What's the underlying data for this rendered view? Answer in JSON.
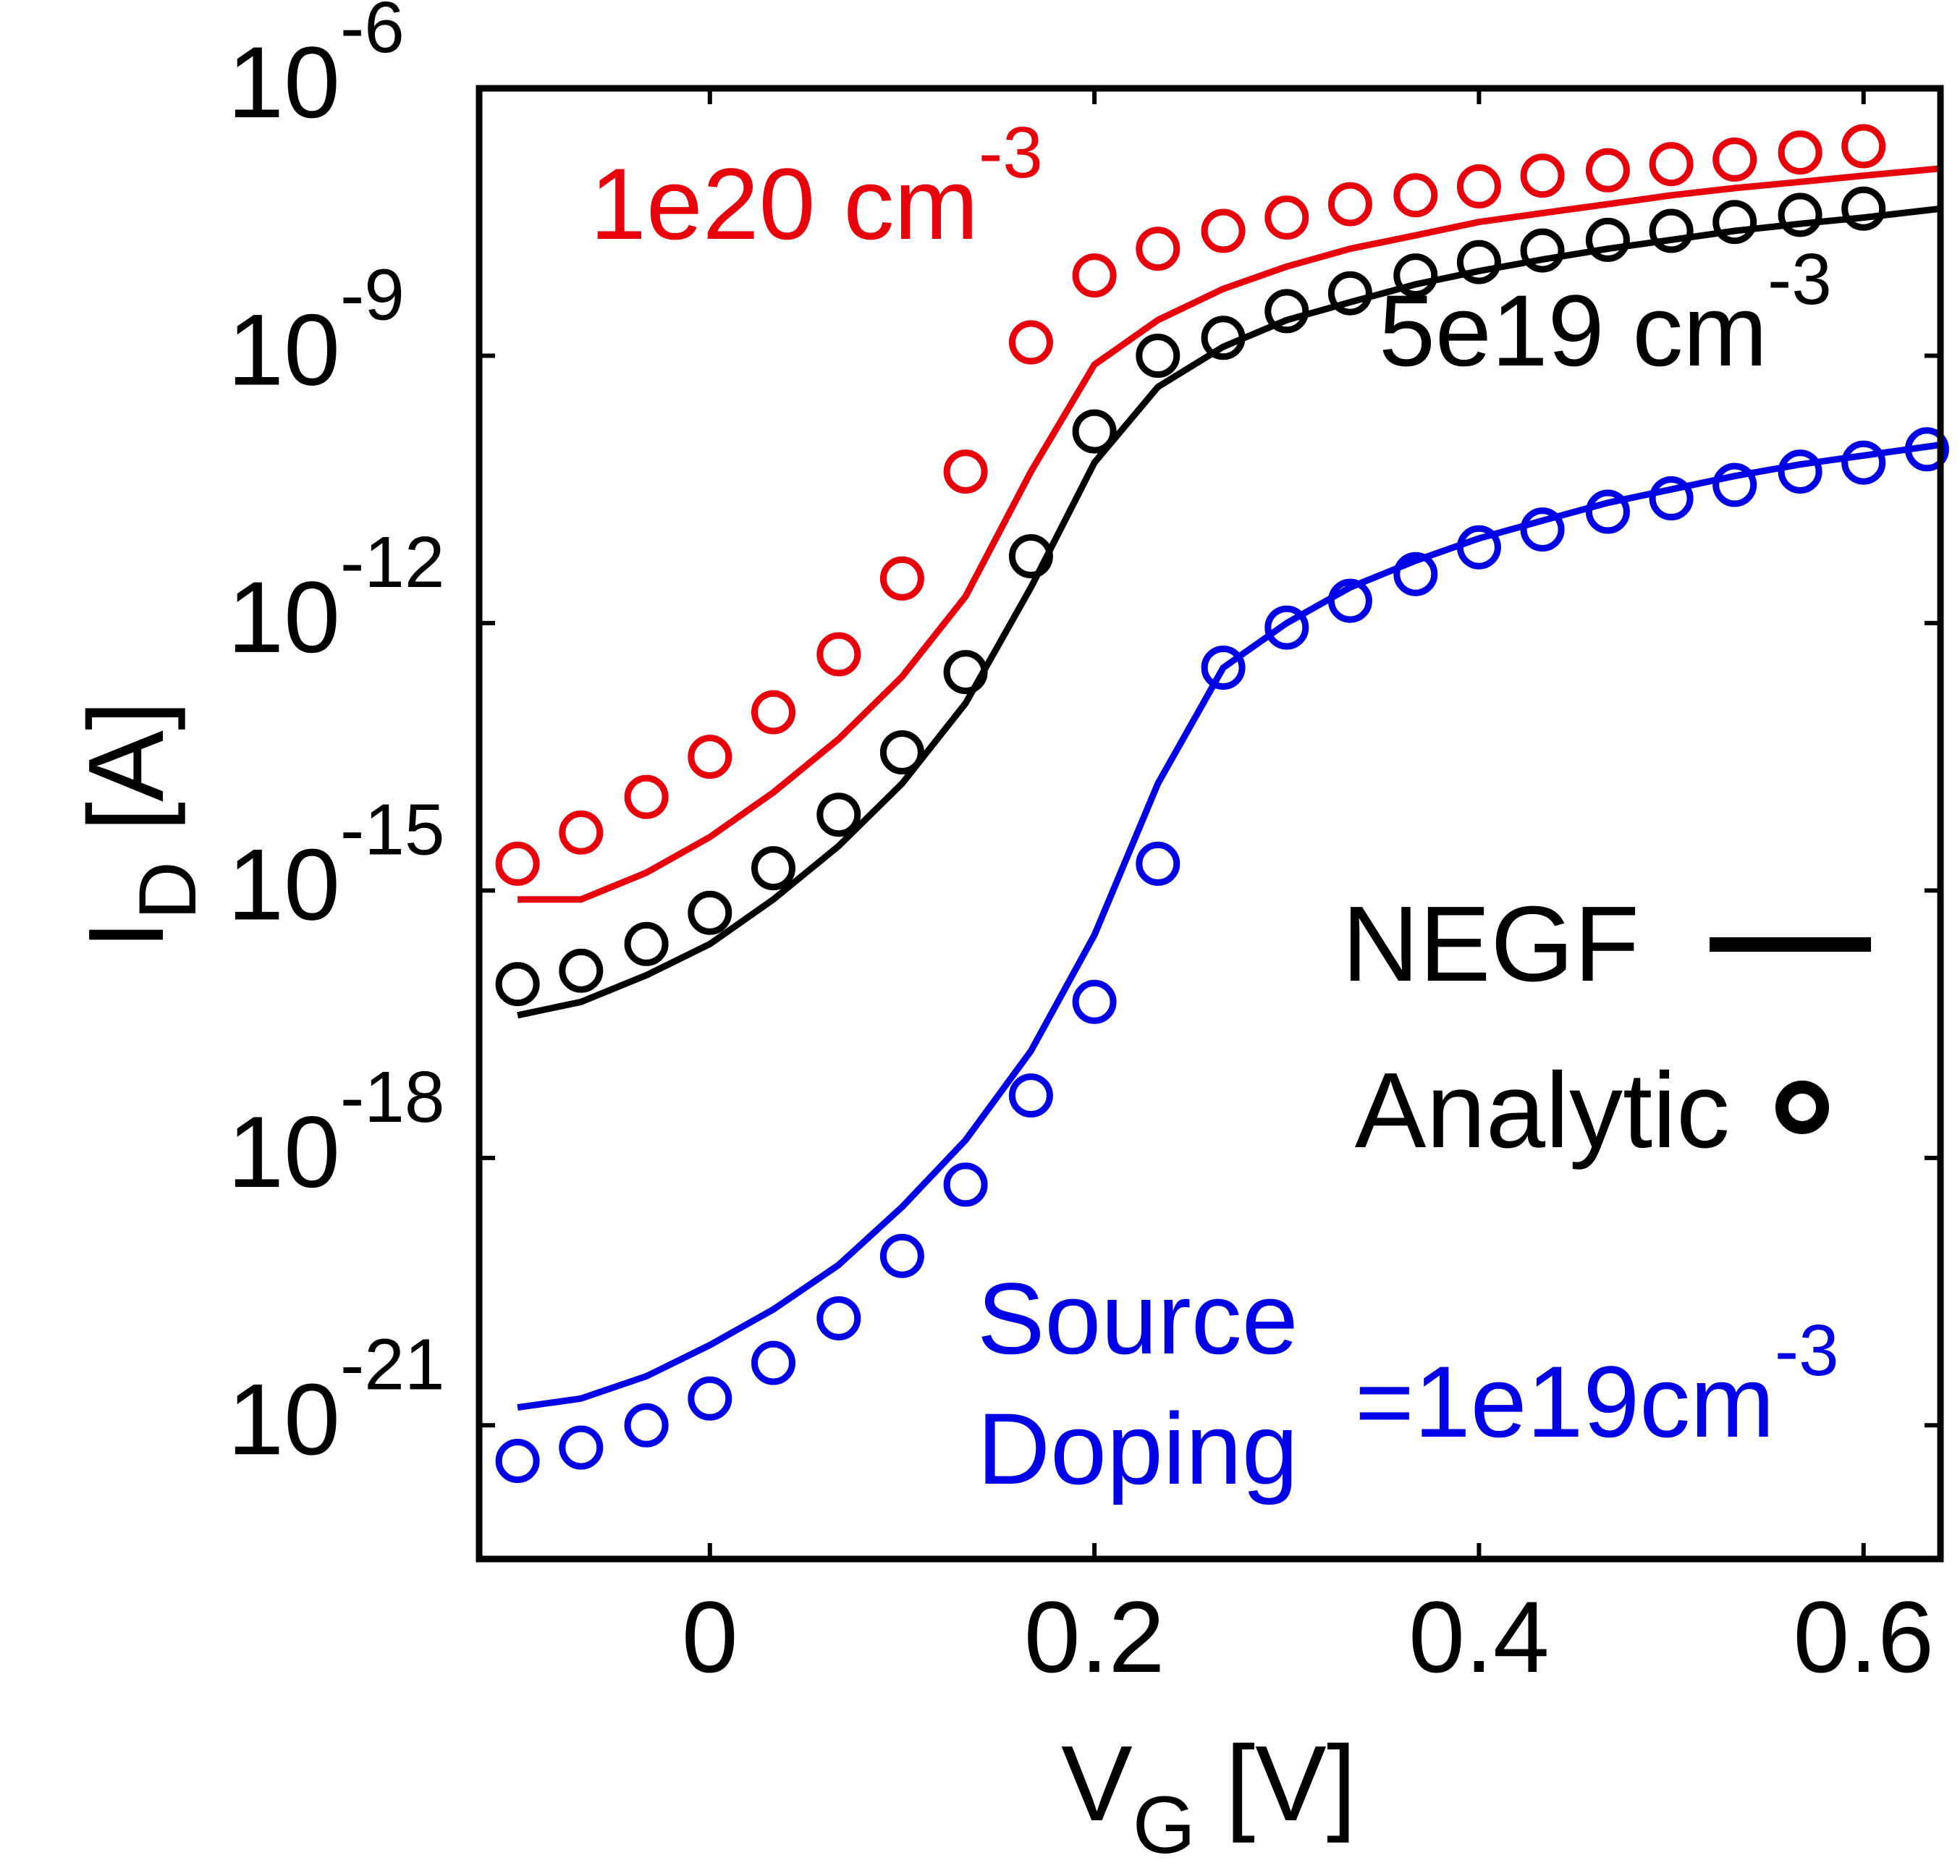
{
  "chart_data": {
    "type": "line",
    "title": "",
    "xlabel": {
      "main": "V",
      "sub": "G",
      "unit": " [V]"
    },
    "ylabel": {
      "main": "I",
      "sub": "D",
      "unit": " [A]"
    },
    "xlim": [
      -0.12,
      0.64
    ],
    "ylog_exponent_range": [
      -22.5,
      -6
    ],
    "x_ticks": [
      {
        "value": 0,
        "label": "0"
      },
      {
        "value": 0.2,
        "label": "0.2"
      },
      {
        "value": 0.4,
        "label": "0.4"
      },
      {
        "value": 0.6,
        "label": "0.6"
      }
    ],
    "y_ticks": [
      {
        "exp": -6,
        "base": "10",
        "sup": "-6"
      },
      {
        "exp": -9,
        "base": "10",
        "sup": "-9"
      },
      {
        "exp": -12,
        "base": "10",
        "sup": "-12"
      },
      {
        "exp": -15,
        "base": "10",
        "sup": "-15"
      },
      {
        "exp": -18,
        "base": "10",
        "sup": "-18"
      },
      {
        "exp": -21,
        "base": "10",
        "sup": "-21"
      }
    ],
    "series": [
      {
        "name": "1e20 cm-3",
        "color": "#e8000b",
        "negf_x": [
          -0.1,
          -0.067,
          -0.033,
          0,
          0.033,
          0.067,
          0.1,
          0.133,
          0.167,
          0.2,
          0.233,
          0.267,
          0.3,
          0.333,
          0.367,
          0.4,
          0.433,
          0.467,
          0.5,
          0.533,
          0.567,
          0.6,
          0.64
        ],
        "negf_log10": [
          -15.1,
          -15.1,
          -14.8,
          -14.4,
          -13.9,
          -13.3,
          -12.6,
          -11.7,
          -10.3,
          -9.1,
          -8.6,
          -8.25,
          -8.0,
          -7.8,
          -7.65,
          -7.5,
          -7.4,
          -7.3,
          -7.2,
          -7.12,
          -7.05,
          -6.98,
          -6.9
        ],
        "analytic_x": [
          -0.1,
          -0.067,
          -0.033,
          0,
          0.033,
          0.067,
          0.1,
          0.133,
          0.167,
          0.2,
          0.233,
          0.267,
          0.3,
          0.333,
          0.367,
          0.4,
          0.433,
          0.467,
          0.5,
          0.533,
          0.567,
          0.6
        ],
        "analytic_log10": [
          -14.7,
          -14.35,
          -13.95,
          -13.5,
          -13.0,
          -12.35,
          -11.5,
          -10.3,
          -8.85,
          -8.1,
          -7.8,
          -7.6,
          -7.45,
          -7.3,
          -7.2,
          -7.1,
          -6.98,
          -6.92,
          -6.85,
          -6.8,
          -6.72,
          -6.65
        ]
      },
      {
        "name": "5e19 cm-3",
        "color": "#000000",
        "negf_x": [
          -0.1,
          -0.067,
          -0.033,
          0,
          0.033,
          0.067,
          0.1,
          0.133,
          0.167,
          0.2,
          0.233,
          0.267,
          0.3,
          0.333,
          0.367,
          0.4,
          0.433,
          0.467,
          0.5,
          0.533,
          0.567,
          0.6,
          0.64
        ],
        "negf_log10": [
          -16.4,
          -16.25,
          -15.95,
          -15.6,
          -15.1,
          -14.5,
          -13.8,
          -12.9,
          -11.6,
          -10.2,
          -9.35,
          -8.9,
          -8.6,
          -8.4,
          -8.2,
          -8.05,
          -7.92,
          -7.8,
          -7.7,
          -7.6,
          -7.52,
          -7.45,
          -7.35
        ]
      },
      {
        "name": "Source Doping =1e19cm-3",
        "color": "#0000e6",
        "negf_x": [
          -0.1,
          -0.067,
          -0.033,
          0,
          0.033,
          0.067,
          0.1,
          0.133,
          0.167,
          0.2,
          0.233,
          0.267,
          0.3,
          0.333,
          0.367,
          0.4,
          0.433,
          0.467,
          0.5,
          0.533,
          0.567,
          0.6,
          0.64
        ],
        "negf_log10": [
          -20.8,
          -20.7,
          -20.45,
          -20.1,
          -19.7,
          -19.2,
          -18.55,
          -17.8,
          -16.8,
          -15.5,
          -13.8,
          -12.5,
          -12.0,
          -11.6,
          -11.3,
          -11.05,
          -10.85,
          -10.65,
          -10.5,
          -10.35,
          -10.22,
          -10.12,
          -10.0
        ],
        "analytic_x": [
          -0.1,
          -0.067,
          -0.033,
          0,
          0.033,
          0.067,
          0.1,
          0.133,
          0.167,
          0.2,
          0.233,
          0.267,
          0.3,
          0.333,
          0.367,
          0.4,
          0.433,
          0.467,
          0.5,
          0.533,
          0.567,
          0.6,
          0.633
        ],
        "analytic_log10": [
          -21.4,
          -21.25,
          -21.0,
          -20.7,
          -20.3,
          -19.8,
          -19.1,
          -18.3,
          -17.3,
          -16.25,
          -14.7,
          -12.5,
          -12.05,
          -11.75,
          -11.45,
          -11.15,
          -10.95,
          -10.75,
          -10.6,
          -10.45,
          -10.3,
          -10.2,
          -10.05
        ]
      }
    ],
    "annotations": {
      "red": {
        "text": "1e20 cm",
        "sup": "-3"
      },
      "black": {
        "text": "5e19 cm",
        "sup": "-3"
      },
      "blue_line1": {
        "text": "Source"
      },
      "blue_line2": {
        "text": "Doping",
        "text2": "=1e19cm",
        "sup": "-3"
      }
    },
    "legend": {
      "position": "right-middle",
      "entries": [
        {
          "label": "NEGF",
          "marker": "line"
        },
        {
          "label": "Analytic",
          "marker": "circle"
        }
      ]
    }
  }
}
